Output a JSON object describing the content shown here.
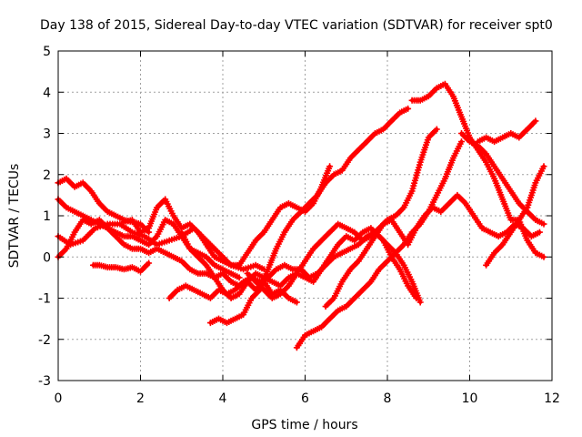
{
  "chart_data": {
    "type": "scatter",
    "title": "Day 138 of 2015, Sidereal Day-to-day VTEC variation (SDTVAR) for receiver spt0",
    "xlabel": "GPS time / hours",
    "ylabel": "SDTVAR / TECUs",
    "xlim": [
      0,
      12
    ],
    "ylim": [
      -3,
      5
    ],
    "xticks": [
      "0",
      "2",
      "4",
      "6",
      "8",
      "10",
      "12"
    ],
    "yticks": [
      "-3",
      "-2",
      "-1",
      "0",
      "1",
      "2",
      "3",
      "4",
      "5"
    ],
    "grid": true,
    "legend": "none",
    "marker": "plus",
    "color": "#ff0000",
    "series": [
      {
        "x": [
          0.0,
          0.2,
          0.4,
          0.6,
          0.8,
          1.0,
          1.2,
          1.4,
          1.6,
          1.8,
          2.0,
          2.2
        ],
        "y": [
          1.8,
          1.9,
          1.7,
          1.8,
          1.6,
          1.3,
          1.1,
          1.0,
          0.9,
          0.85,
          0.8,
          0.6
        ]
      },
      {
        "x": [
          0.0,
          0.2,
          0.4,
          0.6,
          0.8,
          1.0,
          1.2,
          1.4,
          1.6,
          1.8,
          2.0,
          2.2,
          2.4,
          2.6,
          2.8,
          3.0,
          3.2,
          3.4,
          3.6,
          3.8,
          4.0,
          4.2,
          4.4
        ],
        "y": [
          1.4,
          1.2,
          1.1,
          1.0,
          0.9,
          0.8,
          0.7,
          0.6,
          0.5,
          0.5,
          0.4,
          0.3,
          0.5,
          0.9,
          0.8,
          0.5,
          0.2,
          0.1,
          0.0,
          -0.2,
          -0.3,
          -0.4,
          -0.5
        ]
      },
      {
        "x": [
          0.0,
          0.3,
          0.6,
          0.9,
          1.2,
          1.5,
          1.8,
          2.1,
          2.4,
          2.7,
          3.0,
          3.3,
          3.6,
          3.9,
          4.2,
          4.5,
          4.8,
          5.0
        ],
        "y": [
          0.5,
          0.3,
          0.4,
          0.7,
          0.8,
          0.8,
          0.6,
          0.5,
          0.3,
          0.4,
          0.5,
          0.7,
          0.4,
          0.1,
          -0.2,
          -0.3,
          -0.2,
          -0.3
        ]
      },
      {
        "x": [
          0.0,
          0.2,
          0.4,
          0.6,
          0.8,
          1.0,
          1.2,
          1.4,
          1.6,
          1.8,
          2.0,
          2.2,
          2.4,
          2.6,
          2.8,
          3.0,
          3.2,
          3.4,
          3.6,
          3.8,
          4.0,
          4.2,
          4.4,
          4.6,
          4.8,
          5.0,
          5.2,
          5.4,
          5.6,
          5.8
        ],
        "y": [
          0.0,
          0.2,
          0.6,
          0.9,
          0.8,
          0.9,
          0.7,
          0.5,
          0.3,
          0.2,
          0.2,
          0.1,
          0.2,
          0.1,
          0.0,
          -0.1,
          -0.3,
          -0.4,
          -0.4,
          -0.5,
          -0.4,
          -0.6,
          -0.7,
          -0.6,
          -0.8,
          -0.6,
          -0.9,
          -0.8,
          -1.0,
          -1.1
        ]
      },
      {
        "x": [
          0.85,
          1.0,
          1.2,
          1.4,
          1.6,
          1.8,
          2.0,
          2.2
        ],
        "y": [
          -0.2,
          -0.2,
          -0.25,
          -0.25,
          -0.3,
          -0.25,
          -0.35,
          -0.15
        ]
      },
      {
        "x": [
          1.6,
          1.8,
          2.0,
          2.2,
          2.4,
          2.6,
          2.8,
          3.0,
          3.2,
          3.4,
          3.6,
          3.8,
          4.0,
          4.2,
          4.4,
          4.6,
          4.8,
          5.0,
          5.2,
          5.4,
          5.6,
          5.8,
          6.0,
          6.2,
          6.4,
          6.6
        ],
        "y": [
          0.85,
          0.9,
          0.6,
          0.7,
          1.2,
          1.4,
          1.0,
          0.7,
          0.8,
          0.6,
          0.3,
          0.0,
          -0.1,
          -0.2,
          -0.2,
          0.1,
          0.4,
          0.6,
          0.9,
          1.2,
          1.3,
          1.2,
          1.1,
          1.3,
          1.7,
          2.2
        ]
      },
      {
        "x": [
          2.7,
          2.9,
          3.1,
          3.3,
          3.5,
          3.7,
          3.9,
          4.1,
          4.3,
          4.5,
          4.7,
          4.9,
          5.1,
          5.3,
          5.5,
          5.7,
          5.9,
          6.1,
          6.3,
          6.5,
          6.7,
          6.9,
          7.1,
          7.3,
          7.5,
          7.7,
          7.9,
          8.1,
          8.3,
          8.5,
          8.7
        ],
        "y": [
          -1.0,
          -0.8,
          -0.7,
          -0.8,
          -0.9,
          -1.0,
          -0.8,
          -0.9,
          -0.8,
          -0.6,
          -0.5,
          -0.6,
          -0.5,
          -0.3,
          -0.2,
          -0.3,
          -0.3,
          -0.5,
          -0.4,
          -0.2,
          0.0,
          0.1,
          0.2,
          0.3,
          0.5,
          0.6,
          0.4,
          0.0,
          -0.3,
          -0.7,
          -1.0
        ]
      },
      {
        "x": [
          3.0,
          3.2,
          3.4,
          3.6,
          3.8,
          4.0,
          4.2,
          4.4,
          4.6,
          4.8,
          5.0,
          5.2,
          5.4,
          5.6,
          5.8,
          6.0,
          6.2,
          6.4,
          6.6,
          6.8,
          7.0,
          7.2,
          7.4,
          7.6,
          7.8,
          8.0,
          8.2,
          8.4,
          8.6,
          8.8
        ],
        "y": [
          0.6,
          0.2,
          0.0,
          -0.2,
          -0.5,
          -0.8,
          -1.0,
          -0.9,
          -0.6,
          -0.4,
          -0.5,
          -0.6,
          -0.7,
          -0.5,
          -0.4,
          -0.5,
          -0.6,
          -0.3,
          0.0,
          0.3,
          0.5,
          0.4,
          0.6,
          0.7,
          0.5,
          0.3,
          0.1,
          -0.2,
          -0.6,
          -1.1
        ]
      },
      {
        "x": [
          3.7,
          3.9,
          4.1,
          4.3,
          4.5,
          4.7,
          4.9,
          5.1,
          5.3,
          5.5,
          5.7,
          5.9,
          6.1,
          6.3,
          6.5,
          6.7,
          6.9,
          7.1,
          7.3,
          7.5,
          7.7,
          7.9,
          8.1,
          8.3,
          8.5
        ],
        "y": [
          -1.6,
          -1.5,
          -1.6,
          -1.5,
          -1.4,
          -1.0,
          -0.8,
          -0.3,
          0.2,
          0.6,
          0.9,
          1.1,
          1.3,
          1.5,
          1.8,
          2.0,
          2.1,
          2.4,
          2.6,
          2.8,
          3.0,
          3.1,
          3.3,
          3.5,
          3.6
        ]
      },
      {
        "x": [
          4.6,
          4.8,
          5.0,
          5.2,
          5.4,
          5.6,
          5.8,
          6.0,
          6.2,
          6.4,
          6.6,
          6.8,
          7.0,
          7.2,
          7.4,
          7.6,
          7.8,
          8.0,
          8.2,
          8.4,
          8.6,
          8.8,
          9.0,
          9.2
        ],
        "y": [
          -0.4,
          -0.6,
          -0.8,
          -1.0,
          -0.9,
          -0.7,
          -0.4,
          -0.1,
          0.2,
          0.4,
          0.6,
          0.8,
          0.7,
          0.6,
          0.4,
          0.5,
          0.7,
          0.9,
          1.0,
          1.2,
          1.6,
          2.3,
          2.9,
          3.1
        ]
      },
      {
        "x": [
          5.8,
          6.0,
          6.2,
          6.4,
          6.6,
          6.8,
          7.0,
          7.2,
          7.4,
          7.6,
          7.8,
          8.0,
          8.2,
          8.4,
          8.6,
          8.8,
          9.0,
          9.2,
          9.4,
          9.6,
          9.8
        ],
        "y": [
          -2.2,
          -1.9,
          -1.8,
          -1.7,
          -1.5,
          -1.3,
          -1.2,
          -1.0,
          -0.8,
          -0.6,
          -0.3,
          -0.1,
          0.1,
          0.3,
          0.6,
          0.8,
          1.1,
          1.5,
          1.9,
          2.4,
          2.8
        ]
      },
      {
        "x": [
          6.5,
          6.7,
          6.9,
          7.1,
          7.3,
          7.5,
          7.7,
          7.9,
          8.1,
          8.3,
          8.5,
          8.7,
          8.9,
          9.1,
          9.3,
          9.5,
          9.7,
          9.9,
          10.1,
          10.3,
          10.5,
          10.7,
          10.9,
          11.1,
          11.3,
          11.5,
          11.7
        ],
        "y": [
          -1.2,
          -1.0,
          -0.6,
          -0.3,
          -0.1,
          0.2,
          0.5,
          0.8,
          0.9,
          0.6,
          0.3,
          0.7,
          1.0,
          1.2,
          1.1,
          1.3,
          1.5,
          1.3,
          1.0,
          0.7,
          0.6,
          0.5,
          0.6,
          0.8,
          0.7,
          0.5,
          0.6
        ]
      },
      {
        "x": [
          8.6,
          8.8,
          9.0,
          9.2,
          9.4,
          9.6,
          9.8,
          10.0,
          10.2,
          10.4,
          10.6,
          10.8,
          11.0,
          11.2,
          11.4,
          11.6,
          11.8
        ],
        "y": [
          3.8,
          3.8,
          3.9,
          4.1,
          4.2,
          3.9,
          3.4,
          2.9,
          2.6,
          2.3,
          1.9,
          1.4,
          0.9,
          0.9,
          1.2,
          1.8,
          2.2
        ]
      },
      {
        "x": [
          9.8,
          10.0,
          10.2,
          10.4,
          10.6,
          10.8,
          11.0,
          11.2,
          11.4,
          11.6,
          11.8
        ],
        "y": [
          3.0,
          2.8,
          2.7,
          2.5,
          2.2,
          1.9,
          1.6,
          1.3,
          1.1,
          0.9,
          0.8
        ]
      },
      {
        "x": [
          10.2,
          10.4,
          10.6,
          10.8,
          11.0,
          11.2,
          11.4,
          11.6
        ],
        "y": [
          2.8,
          2.9,
          2.8,
          2.9,
          3.0,
          2.9,
          3.1,
          3.3
        ]
      },
      {
        "x": [
          10.4,
          10.6,
          10.8,
          11.0,
          11.2,
          11.4,
          11.6,
          11.8
        ],
        "y": [
          -0.2,
          0.1,
          0.3,
          0.6,
          0.9,
          0.4,
          0.1,
          0.0
        ]
      }
    ]
  }
}
